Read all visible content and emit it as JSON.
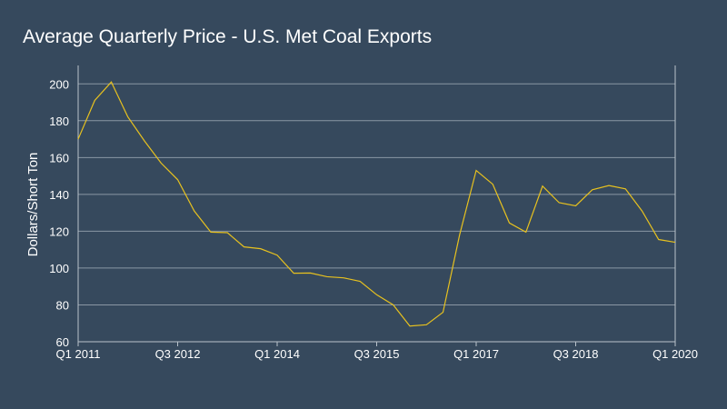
{
  "chart_data": {
    "type": "line",
    "title": "Average Quarterly Price - U.S. Met Coal Exports",
    "ylabel": "Dollars/Short Ton",
    "xlabel": "",
    "ylim": [
      60,
      210
    ],
    "y_ticks": [
      60,
      80,
      100,
      120,
      140,
      160,
      180,
      200
    ],
    "x_tick_labels": [
      "Q1 2011",
      "Q3 2012",
      "Q1 2014",
      "Q3 2015",
      "Q1 2017",
      "Q3 2018",
      "Q1 2020"
    ],
    "x": [
      "Q1 2011",
      "Q2 2011",
      "Q3 2011",
      "Q4 2011",
      "Q1 2012",
      "Q2 2012",
      "Q3 2012",
      "Q4 2012",
      "Q1 2013",
      "Q2 2013",
      "Q3 2013",
      "Q4 2013",
      "Q1 2014",
      "Q2 2014",
      "Q3 2014",
      "Q4 2014",
      "Q1 2015",
      "Q2 2015",
      "Q3 2015",
      "Q4 2015",
      "Q1 2016",
      "Q2 2016",
      "Q3 2016",
      "Q4 2016",
      "Q1 2017",
      "Q2 2017",
      "Q3 2017",
      "Q4 2017",
      "Q1 2018",
      "Q2 2018",
      "Q3 2018",
      "Q4 2018",
      "Q1 2019",
      "Q2 2019",
      "Q3 2019",
      "Q4 2019",
      "Q1 2020"
    ],
    "series": [
      {
        "color": "#e7c11f",
        "values": [
          170,
          191,
          201,
          182,
          169,
          157,
          148,
          131,
          119.5,
          119.2,
          111.5,
          110.5,
          107,
          97.2,
          97.3,
          95.3,
          94.7,
          92.8,
          85.5,
          80,
          68.5,
          69.2,
          76,
          118,
          153,
          145.5,
          124.5,
          119.5,
          144.5,
          135.5,
          133.8,
          142.5,
          144.8,
          143,
          131,
          115.5,
          114
        ]
      }
    ],
    "grid": true
  },
  "colors": {
    "background": "#36495d",
    "line": "#e7c11f",
    "gridline": "#8a97a4"
  }
}
